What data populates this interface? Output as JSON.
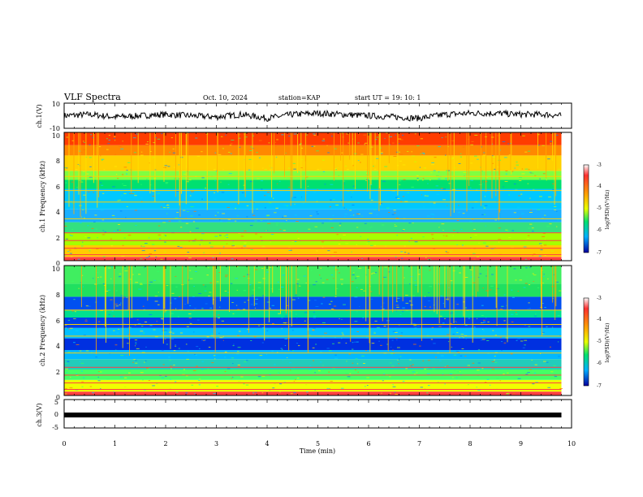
{
  "header": {
    "title": "VLF Spectra",
    "date": "Oct. 10, 2024",
    "station": "station=KAP",
    "start": "start  UT  =   19: 10: 1"
  },
  "colors": {
    "spectrogram_base": "#00cc66",
    "trace": "#000000",
    "axis": "#000000"
  },
  "chart_data": [
    {
      "type": "line",
      "name": "ch1-waveform",
      "ylabel": "ch.1(V)",
      "ylim": [
        -10,
        10
      ],
      "yticks": [
        "10",
        "-10"
      ],
      "xlim": [
        0,
        10
      ],
      "x": [
        0,
        0.5,
        1,
        1.5,
        2,
        2.5,
        3,
        3.5,
        4,
        4.5,
        5,
        5.5,
        6,
        6.5,
        7,
        7.5,
        8,
        8.5,
        9,
        9.5,
        9.8
      ],
      "values": [
        0,
        1,
        -1,
        0,
        1,
        0,
        -1,
        1,
        -2,
        1,
        2,
        1,
        0,
        -1,
        -2,
        1,
        2,
        2,
        1,
        1,
        0
      ]
    },
    {
      "type": "heatmap",
      "name": "ch1-spectrogram",
      "ylabel": "ch.1 Frequency (kHz)",
      "ylim": [
        0,
        10
      ],
      "yticks": [
        "0",
        "2",
        "4",
        "6",
        "8",
        "10"
      ],
      "xlim": [
        0,
        9.8
      ],
      "colorbar": {
        "label": "log(PSD)(V²/Hz)",
        "ticks": [
          "-3",
          "-4",
          "-5",
          "-6",
          "-7"
        ],
        "range": [
          -7,
          -3
        ]
      }
    },
    {
      "type": "heatmap",
      "name": "ch2-spectrogram",
      "ylabel": "ch.2 Frequency (kHz)",
      "ylim": [
        0,
        10
      ],
      "yticks": [
        "0",
        "2",
        "4",
        "6",
        "8",
        "10"
      ],
      "xlim": [
        0,
        9.8
      ],
      "colorbar": {
        "label": "log(PSD)(V²/Hz)",
        "ticks": [
          "-3",
          "-4",
          "-5",
          "-6",
          "-7"
        ],
        "range": [
          -7,
          -3
        ]
      }
    },
    {
      "type": "line",
      "name": "ch3-waveform",
      "ylabel": "ch.3(V)",
      "ylim": [
        -5,
        5
      ],
      "yticks": [
        "5",
        "0",
        "-5"
      ],
      "xlim": [
        0,
        10
      ],
      "x": [
        0,
        9.8
      ],
      "values": [
        -1,
        -1
      ]
    }
  ],
  "xaxis": {
    "label": "Time (min)",
    "ticks": [
      "0",
      "1",
      "2",
      "3",
      "4",
      "5",
      "6",
      "7",
      "8",
      "9",
      "10"
    ]
  }
}
